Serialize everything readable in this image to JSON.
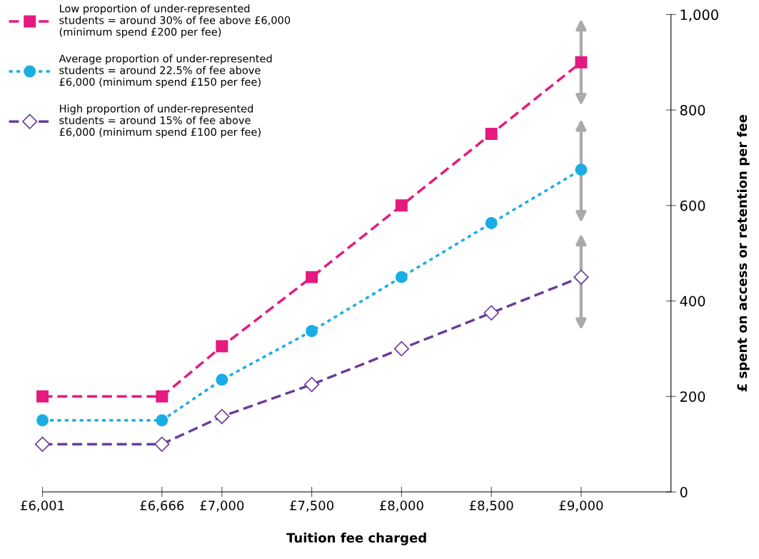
{
  "chart_data": {
    "type": "line",
    "xlabel": "Tuition fee charged",
    "ylabel": "£ spent on access or retention per fee",
    "x": [
      6001,
      6666,
      7000,
      7500,
      8000,
      8500,
      9000
    ],
    "series": [
      {
        "name": "Low proportion of under-represented\nstudents = around 30% of fee above £6,000\n(minimum spend £200 per fee)",
        "color": "#e5197f",
        "marker": "square",
        "line_style": "dashed",
        "values": [
          200,
          200,
          305,
          450,
          600,
          750,
          900
        ]
      },
      {
        "name": "Average proportion of under-represented\nstudents = around 22.5% of fee above\n£6,000 (minimum spend £150 per fee)",
        "color": "#1aade4",
        "marker": "circle",
        "line_style": "dotted",
        "values": [
          150,
          150,
          235,
          337,
          450,
          563,
          675
        ]
      },
      {
        "name": "High proportion of under-represented\nstudents = around 15% of fee above\n£6,000 (minimum spend £100 per fee)",
        "color": "#6a3d9a",
        "marker": "diamond",
        "line_style": "dashed",
        "values": [
          100,
          100,
          158,
          225,
          300,
          375,
          450
        ]
      }
    ],
    "xlim": [
      6001,
      9500
    ],
    "xticks": [
      {
        "value": 6001,
        "label": "£6,001"
      },
      {
        "value": 6666,
        "label": "£6,666"
      },
      {
        "value": 7000,
        "label": "£7,000"
      },
      {
        "value": 7500,
        "label": "£7,500"
      },
      {
        "value": 8000,
        "label": "£8,000"
      },
      {
        "value": 8500,
        "label": "£8,500"
      },
      {
        "value": 9000,
        "label": "£9,000"
      }
    ],
    "ylim": [
      0,
      1000
    ],
    "yticks": [
      0,
      200,
      400,
      600,
      800,
      {
        "value": 1000,
        "label": "1,000"
      }
    ],
    "grid": false,
    "legend": "top left"
  }
}
